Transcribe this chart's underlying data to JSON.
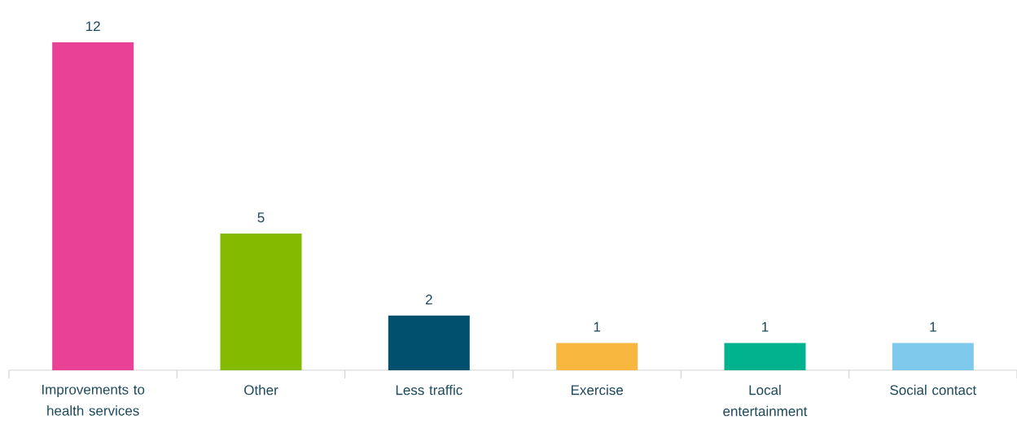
{
  "chart_data": {
    "type": "bar",
    "categories": [
      "Improvements to health services",
      "Other",
      "Less traffic",
      "Exercise",
      "Local entertainment",
      "Social contact"
    ],
    "values": [
      12,
      5,
      2,
      1,
      1,
      1
    ],
    "colors": [
      "#e84195",
      "#84bb00",
      "#00506e",
      "#f8b73e",
      "#00b38e",
      "#7fcaec"
    ],
    "data_labels": true
  }
}
